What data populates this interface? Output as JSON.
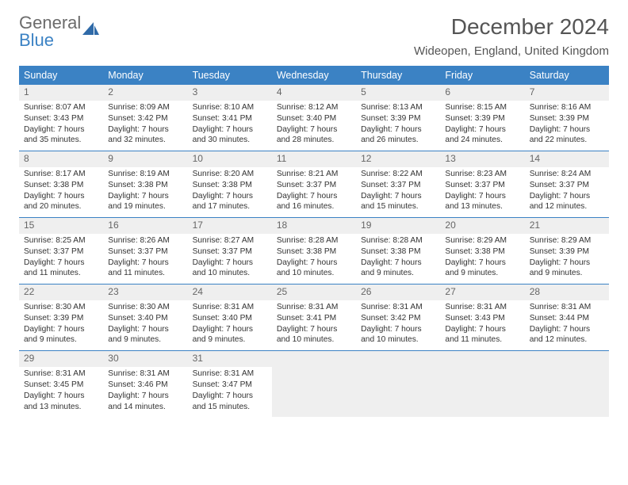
{
  "logo": {
    "word1": "General",
    "word2": "Blue"
  },
  "title": "December 2024",
  "location": "Wideopen, England, United Kingdom",
  "headerBg": "#3b82c4",
  "dayNames": [
    "Sunday",
    "Monday",
    "Tuesday",
    "Wednesday",
    "Thursday",
    "Friday",
    "Saturday"
  ],
  "weeks": [
    [
      {
        "n": "1",
        "sr": "Sunrise: 8:07 AM",
        "ss": "Sunset: 3:43 PM",
        "d1": "Daylight: 7 hours",
        "d2": "and 35 minutes."
      },
      {
        "n": "2",
        "sr": "Sunrise: 8:09 AM",
        "ss": "Sunset: 3:42 PM",
        "d1": "Daylight: 7 hours",
        "d2": "and 32 minutes."
      },
      {
        "n": "3",
        "sr": "Sunrise: 8:10 AM",
        "ss": "Sunset: 3:41 PM",
        "d1": "Daylight: 7 hours",
        "d2": "and 30 minutes."
      },
      {
        "n": "4",
        "sr": "Sunrise: 8:12 AM",
        "ss": "Sunset: 3:40 PM",
        "d1": "Daylight: 7 hours",
        "d2": "and 28 minutes."
      },
      {
        "n": "5",
        "sr": "Sunrise: 8:13 AM",
        "ss": "Sunset: 3:39 PM",
        "d1": "Daylight: 7 hours",
        "d2": "and 26 minutes."
      },
      {
        "n": "6",
        "sr": "Sunrise: 8:15 AM",
        "ss": "Sunset: 3:39 PM",
        "d1": "Daylight: 7 hours",
        "d2": "and 24 minutes."
      },
      {
        "n": "7",
        "sr": "Sunrise: 8:16 AM",
        "ss": "Sunset: 3:39 PM",
        "d1": "Daylight: 7 hours",
        "d2": "and 22 minutes."
      }
    ],
    [
      {
        "n": "8",
        "sr": "Sunrise: 8:17 AM",
        "ss": "Sunset: 3:38 PM",
        "d1": "Daylight: 7 hours",
        "d2": "and 20 minutes."
      },
      {
        "n": "9",
        "sr": "Sunrise: 8:19 AM",
        "ss": "Sunset: 3:38 PM",
        "d1": "Daylight: 7 hours",
        "d2": "and 19 minutes."
      },
      {
        "n": "10",
        "sr": "Sunrise: 8:20 AM",
        "ss": "Sunset: 3:38 PM",
        "d1": "Daylight: 7 hours",
        "d2": "and 17 minutes."
      },
      {
        "n": "11",
        "sr": "Sunrise: 8:21 AM",
        "ss": "Sunset: 3:37 PM",
        "d1": "Daylight: 7 hours",
        "d2": "and 16 minutes."
      },
      {
        "n": "12",
        "sr": "Sunrise: 8:22 AM",
        "ss": "Sunset: 3:37 PM",
        "d1": "Daylight: 7 hours",
        "d2": "and 15 minutes."
      },
      {
        "n": "13",
        "sr": "Sunrise: 8:23 AM",
        "ss": "Sunset: 3:37 PM",
        "d1": "Daylight: 7 hours",
        "d2": "and 13 minutes."
      },
      {
        "n": "14",
        "sr": "Sunrise: 8:24 AM",
        "ss": "Sunset: 3:37 PM",
        "d1": "Daylight: 7 hours",
        "d2": "and 12 minutes."
      }
    ],
    [
      {
        "n": "15",
        "sr": "Sunrise: 8:25 AM",
        "ss": "Sunset: 3:37 PM",
        "d1": "Daylight: 7 hours",
        "d2": "and 11 minutes."
      },
      {
        "n": "16",
        "sr": "Sunrise: 8:26 AM",
        "ss": "Sunset: 3:37 PM",
        "d1": "Daylight: 7 hours",
        "d2": "and 11 minutes."
      },
      {
        "n": "17",
        "sr": "Sunrise: 8:27 AM",
        "ss": "Sunset: 3:37 PM",
        "d1": "Daylight: 7 hours",
        "d2": "and 10 minutes."
      },
      {
        "n": "18",
        "sr": "Sunrise: 8:28 AM",
        "ss": "Sunset: 3:38 PM",
        "d1": "Daylight: 7 hours",
        "d2": "and 10 minutes."
      },
      {
        "n": "19",
        "sr": "Sunrise: 8:28 AM",
        "ss": "Sunset: 3:38 PM",
        "d1": "Daylight: 7 hours",
        "d2": "and 9 minutes."
      },
      {
        "n": "20",
        "sr": "Sunrise: 8:29 AM",
        "ss": "Sunset: 3:38 PM",
        "d1": "Daylight: 7 hours",
        "d2": "and 9 minutes."
      },
      {
        "n": "21",
        "sr": "Sunrise: 8:29 AM",
        "ss": "Sunset: 3:39 PM",
        "d1": "Daylight: 7 hours",
        "d2": "and 9 minutes."
      }
    ],
    [
      {
        "n": "22",
        "sr": "Sunrise: 8:30 AM",
        "ss": "Sunset: 3:39 PM",
        "d1": "Daylight: 7 hours",
        "d2": "and 9 minutes."
      },
      {
        "n": "23",
        "sr": "Sunrise: 8:30 AM",
        "ss": "Sunset: 3:40 PM",
        "d1": "Daylight: 7 hours",
        "d2": "and 9 minutes."
      },
      {
        "n": "24",
        "sr": "Sunrise: 8:31 AM",
        "ss": "Sunset: 3:40 PM",
        "d1": "Daylight: 7 hours",
        "d2": "and 9 minutes."
      },
      {
        "n": "25",
        "sr": "Sunrise: 8:31 AM",
        "ss": "Sunset: 3:41 PM",
        "d1": "Daylight: 7 hours",
        "d2": "and 10 minutes."
      },
      {
        "n": "26",
        "sr": "Sunrise: 8:31 AM",
        "ss": "Sunset: 3:42 PM",
        "d1": "Daylight: 7 hours",
        "d2": "and 10 minutes."
      },
      {
        "n": "27",
        "sr": "Sunrise: 8:31 AM",
        "ss": "Sunset: 3:43 PM",
        "d1": "Daylight: 7 hours",
        "d2": "and 11 minutes."
      },
      {
        "n": "28",
        "sr": "Sunrise: 8:31 AM",
        "ss": "Sunset: 3:44 PM",
        "d1": "Daylight: 7 hours",
        "d2": "and 12 minutes."
      }
    ],
    [
      {
        "n": "29",
        "sr": "Sunrise: 8:31 AM",
        "ss": "Sunset: 3:45 PM",
        "d1": "Daylight: 7 hours",
        "d2": "and 13 minutes."
      },
      {
        "n": "30",
        "sr": "Sunrise: 8:31 AM",
        "ss": "Sunset: 3:46 PM",
        "d1": "Daylight: 7 hours",
        "d2": "and 14 minutes."
      },
      {
        "n": "31",
        "sr": "Sunrise: 8:31 AM",
        "ss": "Sunset: 3:47 PM",
        "d1": "Daylight: 7 hours",
        "d2": "and 15 minutes."
      },
      null,
      null,
      null,
      null
    ]
  ]
}
